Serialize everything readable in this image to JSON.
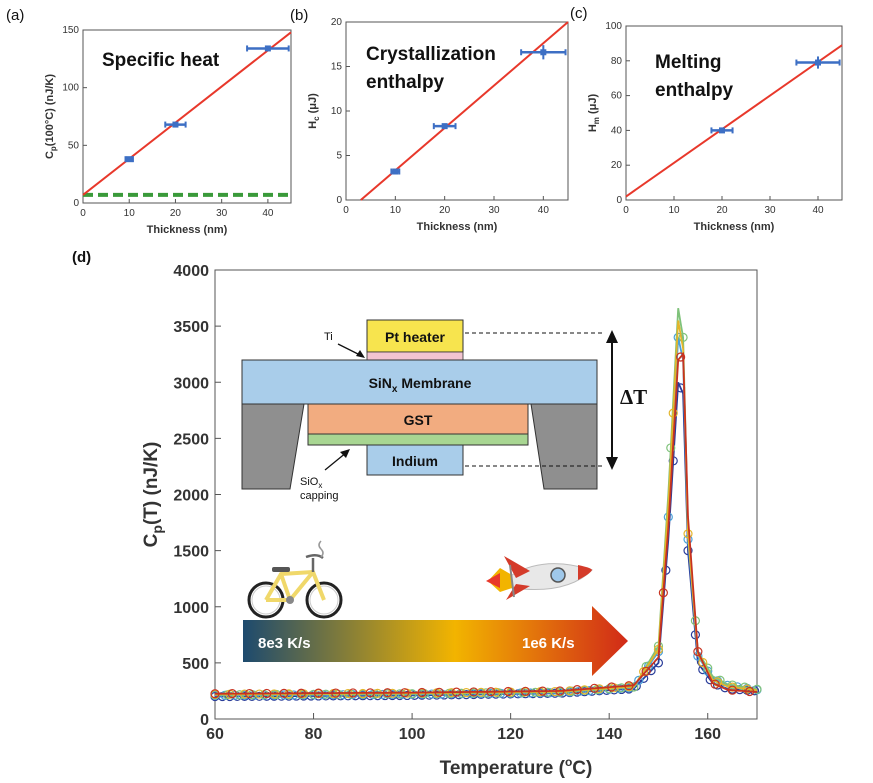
{
  "panels": {
    "a": "(a)",
    "b": "(b)",
    "c": "(c)",
    "d": "(d)"
  },
  "chart_data": [
    {
      "panel": "(a)",
      "type": "scatter",
      "annotation": "Specific heat",
      "xlabel": "Thickness (nm)",
      "ylabel": "C_p(100°C) (nJ/K)",
      "xlim": [
        0,
        45
      ],
      "ylim": [
        0,
        150
      ],
      "xticks": [
        "0",
        "10",
        "20",
        "30",
        "40"
      ],
      "yticks": [
        "0",
        "50",
        "100",
        "150"
      ],
      "x": [
        10,
        20,
        40
      ],
      "y": [
        38,
        68,
        134
      ],
      "xerr": [
        0.8,
        2.2,
        4.5
      ],
      "fit_line": {
        "color": "#e8382b",
        "points": [
          [
            0,
            7
          ],
          [
            45,
            148
          ]
        ]
      },
      "baseline": {
        "color": "#3a9a3a",
        "value": 7,
        "style": "dashed"
      },
      "marker_color": "#3d6fc4"
    },
    {
      "panel": "(b)",
      "type": "scatter",
      "annotation": [
        "Crystallization",
        "enthalpy"
      ],
      "xlabel": "Thickness (nm)",
      "ylabel": "H_c (μJ)",
      "xlim": [
        0,
        45
      ],
      "ylim": [
        0,
        20
      ],
      "xticks": [
        "0",
        "10",
        "20",
        "30",
        "40"
      ],
      "yticks": [
        "0",
        "5",
        "10",
        "15",
        "20"
      ],
      "x": [
        10,
        20,
        40
      ],
      "y": [
        3.2,
        8.3,
        16.6
      ],
      "xerr": [
        0.8,
        2.2,
        4.5
      ],
      "yerr": [
        0.2,
        0.3,
        0.8
      ],
      "fit_line": {
        "color": "#e8382b",
        "points": [
          [
            3,
            0
          ],
          [
            45,
            20
          ]
        ]
      },
      "marker_color": "#3d6fc4"
    },
    {
      "panel": "(c)",
      "type": "scatter",
      "annotation": [
        "Melting",
        "enthalpy"
      ],
      "xlabel": "Thickness (nm)",
      "ylabel": "H_m (μJ)",
      "xlim": [
        0,
        45
      ],
      "ylim": [
        0,
        100
      ],
      "xticks": [
        "0",
        "10",
        "20",
        "30",
        "40"
      ],
      "yticks": [
        "0",
        "20",
        "40",
        "60",
        "80",
        "100"
      ],
      "x": [
        20,
        40
      ],
      "y": [
        40,
        79
      ],
      "xerr": [
        2.2,
        4.5
      ],
      "yerr": [
        1.5,
        3.5
      ],
      "fit_line": {
        "color": "#e8382b",
        "points": [
          [
            0,
            2
          ],
          [
            45,
            89
          ]
        ]
      },
      "marker_color": "#3d6fc4"
    },
    {
      "panel": "(d)",
      "type": "line",
      "xlabel": "Temperature (°C)",
      "ylabel": "C_p(T) (nJ/K)",
      "xlim": [
        60,
        170
      ],
      "ylim": [
        0,
        4000
      ],
      "xticks": [
        "60",
        "80",
        "100",
        "120",
        "140",
        "160"
      ],
      "yticks": [
        "0",
        "500",
        "1000",
        "1500",
        "2000",
        "2500",
        "3000",
        "3500",
        "4000"
      ],
      "series": [
        {
          "color": "#2a3d9a",
          "values": [
            [
              60,
              200
            ],
            [
              100,
              210
            ],
            [
              130,
              230
            ],
            [
              145,
              270
            ],
            [
              150,
              500
            ],
            [
              152,
              1600
            ],
            [
              154,
              3000
            ],
            [
              155,
              2900
            ],
            [
              156,
              1500
            ],
            [
              158,
              500
            ],
            [
              161,
              320
            ],
            [
              164,
              270
            ],
            [
              170,
              250
            ]
          ]
        },
        {
          "color": "#4aa0d8",
          "values": [
            [
              60,
              210
            ],
            [
              100,
              220
            ],
            [
              130,
              235
            ],
            [
              145,
              280
            ],
            [
              150,
              600
            ],
            [
              152,
              1800
            ],
            [
              154,
              3400
            ],
            [
              155,
              3200
            ],
            [
              156,
              1600
            ],
            [
              158,
              560
            ],
            [
              161,
              360
            ],
            [
              164,
              300
            ],
            [
              170,
              260
            ]
          ]
        },
        {
          "color": "#7fc27a",
          "values": [
            [
              60,
              215
            ],
            [
              100,
              225
            ],
            [
              130,
              240
            ],
            [
              145,
              285
            ],
            [
              150,
              650
            ],
            [
              152,
              2000
            ],
            [
              154,
              3660
            ],
            [
              155,
              3400
            ],
            [
              156,
              1700
            ],
            [
              158,
              600
            ],
            [
              161,
              380
            ],
            [
              164,
              310
            ],
            [
              170,
              265
            ]
          ]
        },
        {
          "color": "#e3b52a",
          "values": [
            [
              60,
              220
            ],
            [
              100,
              230
            ],
            [
              130,
              245
            ],
            [
              145,
              290
            ],
            [
              150,
              620
            ],
            [
              152,
              1900
            ],
            [
              154,
              3550
            ],
            [
              155,
              3300
            ],
            [
              156,
              1650
            ],
            [
              158,
              580
            ],
            [
              161,
              350
            ],
            [
              164,
              290
            ],
            [
              170,
              255
            ]
          ]
        },
        {
          "color": "#c83220",
          "values": [
            [
              60,
              225
            ],
            [
              100,
              235
            ],
            [
              130,
              250
            ],
            [
              145,
              300
            ],
            [
              150,
              550
            ],
            [
              152,
              1700
            ],
            [
              154,
              3200
            ],
            [
              155,
              3250
            ],
            [
              156,
              1800
            ],
            [
              158,
              600
            ],
            [
              161,
              320
            ],
            [
              164,
              260
            ],
            [
              170,
              240
            ]
          ]
        }
      ]
    }
  ],
  "schematic": {
    "pt_heater": "Pt heater",
    "ti": "Ti",
    "membrane": "SiN",
    "membrane_sub": "x",
    "membrane_suffix": " Membrane",
    "gst": "GST",
    "indium": "Indium",
    "capping": "SiO",
    "capping_sub": "x",
    "capping_2": "capping",
    "delta_t": "ΔT"
  },
  "rate_arrow": {
    "left": "8e3 K/s",
    "right": "1e6 K/s"
  },
  "icons": {
    "slow": "bicycle-icon",
    "fast": "rocket-icon"
  }
}
